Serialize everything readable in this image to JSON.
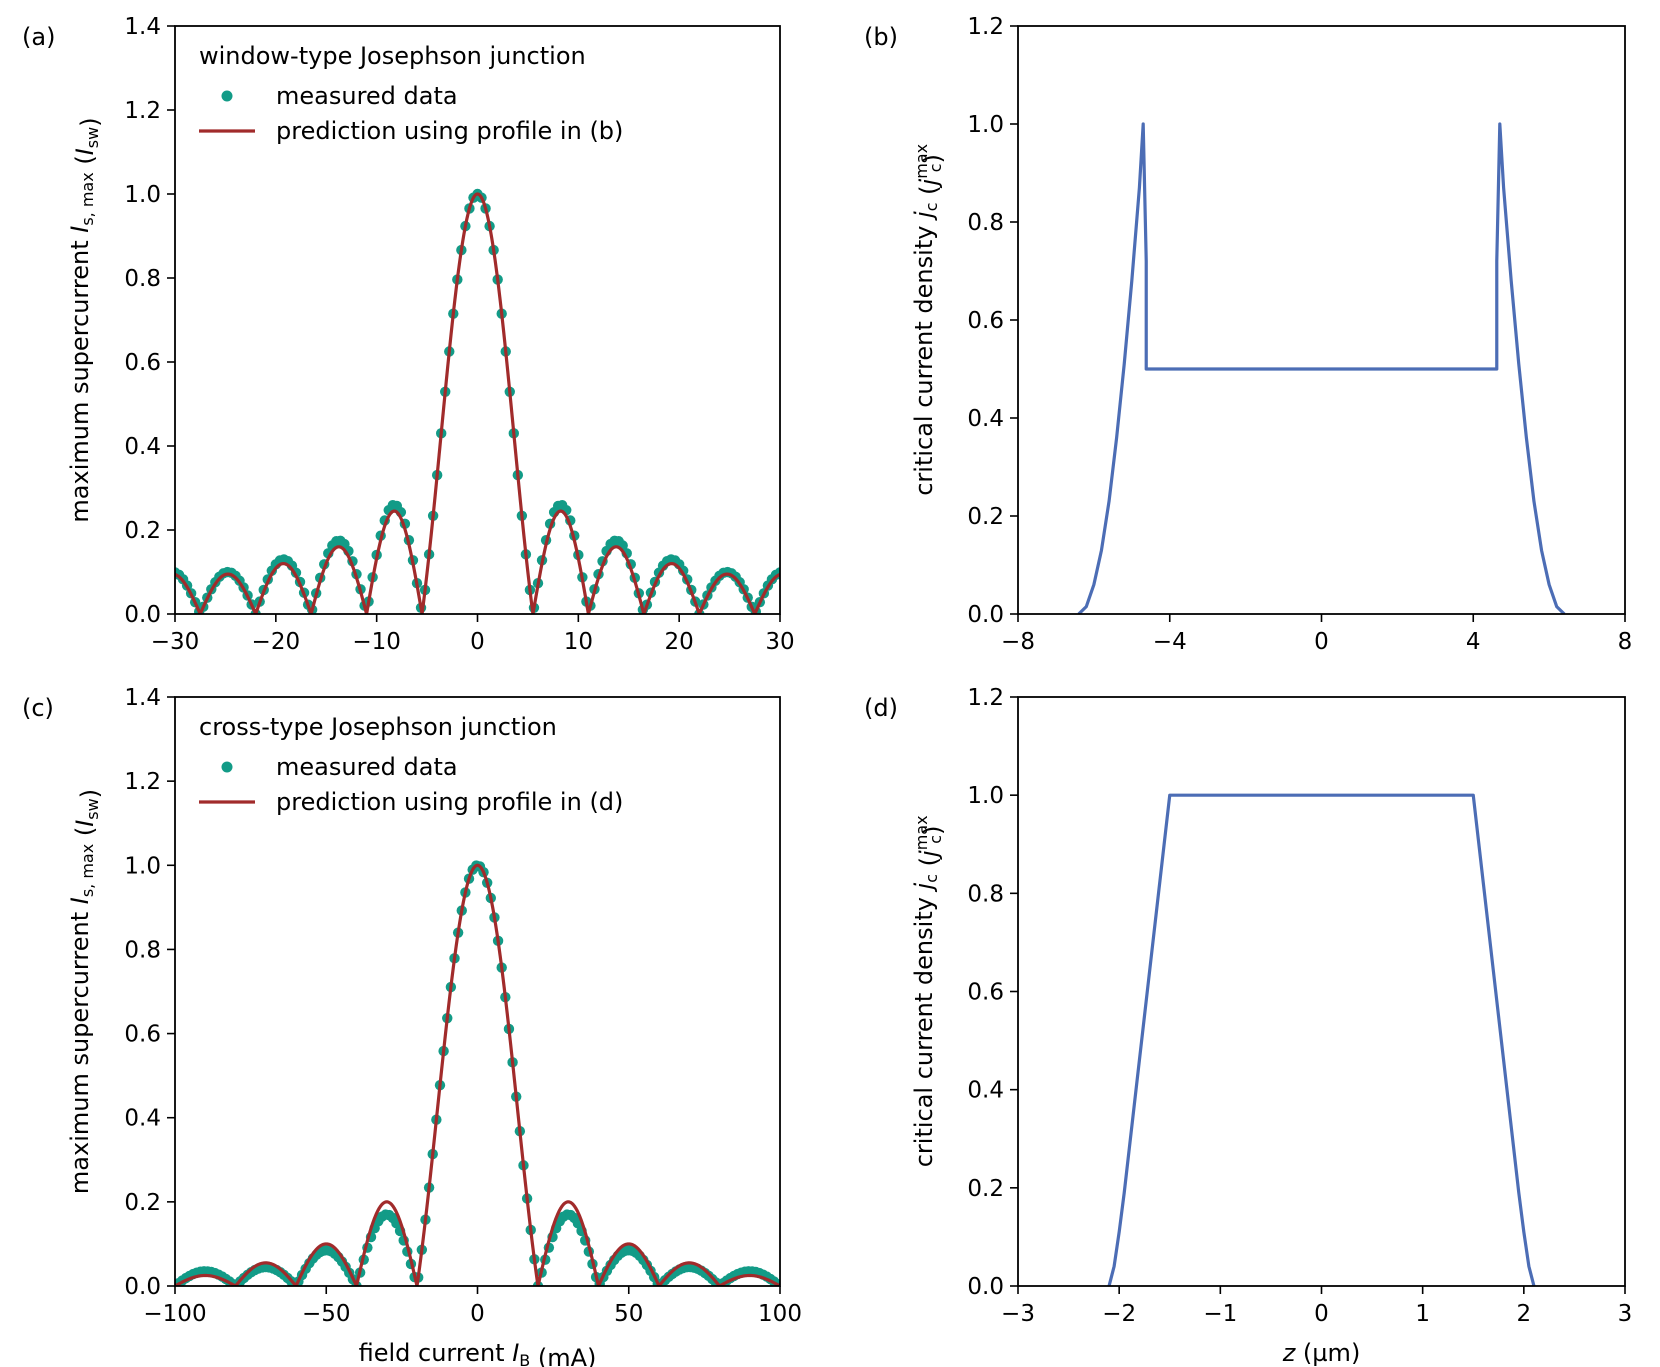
{
  "colors": {
    "measured": "#129b87",
    "prediction": "#a12b2b",
    "profile": "#4c6db5",
    "axis": "#000000"
  },
  "chart_data": [
    {
      "id": "a",
      "panel_label": "(a)",
      "type": "scatter",
      "title": "window-type Josephson junction",
      "xlabel": "",
      "ylabel": {
        "main": "maximum supercurrent ",
        "var": "I",
        "var_sub": "s, max",
        "unit_open": " (",
        "unit": "I",
        "unit_sub": "sw",
        "unit_close": ")"
      },
      "xlim": [
        -30,
        30
      ],
      "ylim": [
        0,
        1.4
      ],
      "xticks": [
        "−30",
        "−20",
        "−10",
        "0",
        "10",
        "20",
        "30"
      ],
      "xtick_values": [
        -30,
        -20,
        -10,
        0,
        10,
        20,
        30
      ],
      "yticks": [
        "0.0",
        "0.2",
        "0.4",
        "0.6",
        "0.8",
        "1.0",
        "1.2",
        "1.4"
      ],
      "ytick_values": [
        0,
        0.2,
        0.4,
        0.6,
        0.8,
        1.0,
        1.2,
        1.4
      ],
      "legend": {
        "placement": "top-left",
        "entries": [
          "measured data",
          "prediction using profile in (b)"
        ]
      },
      "series": [
        {
          "name": "measured data",
          "kind": "points",
          "first_zero_mA": 5.5,
          "peak_values": [
            1.0,
            0.26,
            0.175,
            0.13,
            0.1
          ],
          "x_range": [
            -30,
            30
          ],
          "point_step_mA": 0.4
        },
        {
          "name": "prediction using profile in (b)",
          "kind": "line",
          "first_zero_mA": 5.5,
          "peak_values": [
            1.0,
            0.245,
            0.16,
            0.12,
            0.095
          ],
          "x_range": [
            -30,
            30
          ]
        }
      ],
      "grid": false
    },
    {
      "id": "b",
      "panel_label": "(b)",
      "type": "line",
      "title": "",
      "xlabel": "",
      "ylabel": {
        "main": "critical current density ",
        "var": "j",
        "var_sub": "c",
        "unit_open": " (",
        "unit": "j",
        "unit_sub": "c",
        "unit_sup": "max",
        "unit_close": ")"
      },
      "xlim": [
        -8,
        8
      ],
      "ylim": [
        0,
        1.2
      ],
      "xticks": [
        "−8",
        "−4",
        "0",
        "4",
        "8"
      ],
      "xtick_values": [
        -8,
        -4,
        0,
        4,
        8
      ],
      "yticks": [
        "0.0",
        "0.2",
        "0.4",
        "0.6",
        "0.8",
        "1.0",
        "1.2"
      ],
      "ytick_values": [
        0,
        0.2,
        0.4,
        0.6,
        0.8,
        1.0,
        1.2
      ],
      "series": [
        {
          "name": "",
          "x": [
            -6.4,
            -6.2,
            -6.0,
            -5.8,
            -5.6,
            -5.4,
            -5.2,
            -5.0,
            -4.8,
            -4.7,
            -4.62,
            -4.62,
            4.62,
            4.62,
            4.7,
            4.8,
            5.0,
            5.2,
            5.4,
            5.6,
            5.8,
            6.0,
            6.2,
            6.4
          ],
          "y": [
            0.0,
            0.015,
            0.06,
            0.13,
            0.23,
            0.36,
            0.51,
            0.68,
            0.87,
            1.0,
            0.72,
            0.5,
            0.5,
            0.72,
            1.0,
            0.87,
            0.68,
            0.51,
            0.36,
            0.23,
            0.13,
            0.06,
            0.015,
            0.0
          ]
        }
      ],
      "grid": false
    },
    {
      "id": "c",
      "panel_label": "(c)",
      "type": "scatter",
      "title": "cross-type Josephson junction",
      "xlabel": {
        "main": "field current ",
        "var": "I",
        "var_sub": "B",
        "unit": " (mA)"
      },
      "ylabel": {
        "main": "maximum supercurrent ",
        "var": "I",
        "var_sub": "s, max",
        "unit_open": " (",
        "unit": "I",
        "unit_sub": "sw",
        "unit_close": ")"
      },
      "xlim": [
        -100,
        100
      ],
      "ylim": [
        0,
        1.4
      ],
      "xticks": [
        "−100",
        "−50",
        "0",
        "50",
        "100"
      ],
      "xtick_values": [
        -100,
        -50,
        0,
        50,
        100
      ],
      "yticks": [
        "0.0",
        "0.2",
        "0.4",
        "0.6",
        "0.8",
        "1.0",
        "1.2",
        "1.4"
      ],
      "ytick_values": [
        0,
        0.2,
        0.4,
        0.6,
        0.8,
        1.0,
        1.2,
        1.4
      ],
      "legend": {
        "placement": "top-left",
        "entries": [
          "measured data",
          "prediction using profile in (d)"
        ]
      },
      "series": [
        {
          "name": "measured data",
          "kind": "points",
          "first_zero_mA": 20,
          "peak_values": [
            1.0,
            0.17,
            0.085,
            0.045,
            0.035
          ],
          "x_range": [
            -100,
            100
          ],
          "point_step_mA": 1.2
        },
        {
          "name": "prediction using profile in (d)",
          "kind": "line",
          "first_zero_mA": 20,
          "peak_values": [
            1.0,
            0.2,
            0.1,
            0.055,
            0.025
          ],
          "x_range": [
            -100,
            100
          ]
        }
      ],
      "grid": false
    },
    {
      "id": "d",
      "panel_label": "(d)",
      "type": "line",
      "title": "",
      "xlabel": {
        "main": "",
        "var": "z",
        "var_sub": "",
        "unit": " (µm)"
      },
      "ylabel": {
        "main": "critical current density ",
        "var": "j",
        "var_sub": "c",
        "unit_open": " (",
        "unit": "j",
        "unit_sub": "c",
        "unit_sup": "max",
        "unit_close": ")"
      },
      "xlim": [
        -3,
        3
      ],
      "ylim": [
        0,
        1.2
      ],
      "xticks": [
        "−3",
        "−2",
        "−1",
        "0",
        "1",
        "2",
        "3"
      ],
      "xtick_values": [
        -3,
        -2,
        -1,
        0,
        1,
        2,
        3
      ],
      "yticks": [
        "0.0",
        "0.2",
        "0.4",
        "0.6",
        "0.8",
        "1.0",
        "1.2"
      ],
      "ytick_values": [
        0,
        0.2,
        0.4,
        0.6,
        0.8,
        1.0,
        1.2
      ],
      "series": [
        {
          "name": "",
          "x": [
            -2.1,
            -2.05,
            -2.0,
            -1.95,
            -1.9,
            -1.85,
            -1.8,
            -1.75,
            -1.7,
            -1.65,
            -1.6,
            -1.55,
            -1.5,
            1.5,
            1.55,
            1.6,
            1.65,
            1.7,
            1.75,
            1.8,
            1.85,
            1.9,
            1.95,
            2.0,
            2.05,
            2.1
          ],
          "y": [
            0.0,
            0.04,
            0.11,
            0.19,
            0.28,
            0.37,
            0.46,
            0.55,
            0.64,
            0.73,
            0.82,
            0.91,
            1.0,
            1.0,
            0.91,
            0.82,
            0.73,
            0.64,
            0.55,
            0.46,
            0.37,
            0.28,
            0.19,
            0.11,
            0.04,
            0.0
          ]
        }
      ],
      "grid": false
    }
  ]
}
